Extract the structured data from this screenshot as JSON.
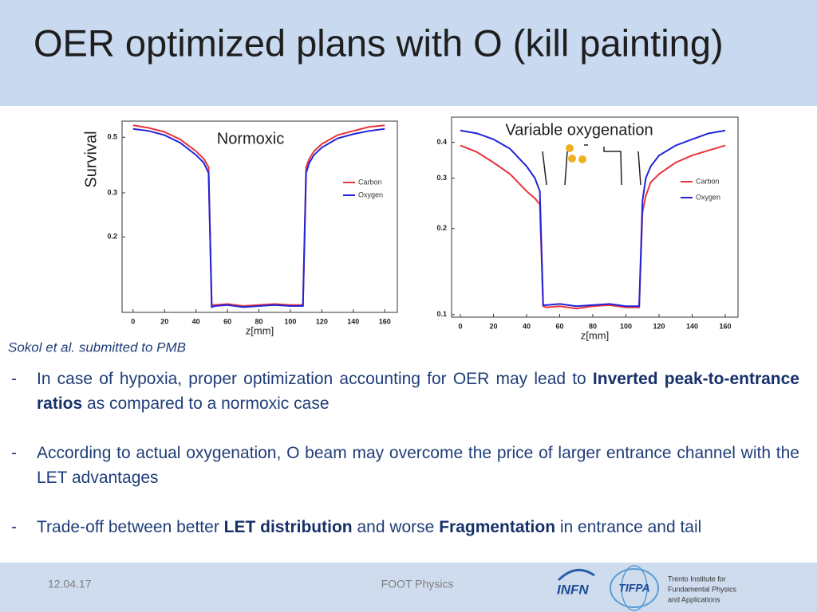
{
  "header": {
    "title": "OER optimized plans with O (kill painting)"
  },
  "chart_data": [
    {
      "type": "line",
      "annotation": "Normoxic",
      "ylabel": "Survival",
      "xlabel": "z[mm]",
      "log_y": true,
      "x": [
        0,
        10,
        20,
        30,
        40,
        45,
        48,
        50,
        52,
        60,
        70,
        80,
        90,
        100,
        108,
        110,
        112,
        115,
        120,
        130,
        140,
        150,
        160
      ],
      "series": [
        {
          "name": "Carbon",
          "color": "#e8333a",
          "values": [
            0.558,
            0.545,
            0.525,
            0.49,
            0.44,
            0.41,
            0.38,
            0.107,
            0.107,
            0.108,
            0.106,
            0.107,
            0.108,
            0.107,
            0.107,
            0.38,
            0.41,
            0.44,
            0.47,
            0.51,
            0.53,
            0.55,
            0.558
          ]
        },
        {
          "name": "Oxygen",
          "color": "#2323d8",
          "values": [
            0.54,
            0.53,
            0.51,
            0.475,
            0.425,
            0.395,
            0.36,
            0.105,
            0.106,
            0.107,
            0.105,
            0.106,
            0.107,
            0.106,
            0.106,
            0.36,
            0.395,
            0.425,
            0.455,
            0.495,
            0.515,
            0.53,
            0.54
          ]
        }
      ],
      "xlim": [
        -7,
        168
      ],
      "xticks": [
        0,
        20,
        40,
        60,
        80,
        100,
        120,
        140,
        160
      ],
      "ylim": [
        0.1,
        0.58
      ],
      "yticks": [
        0.2,
        0.3,
        0.5
      ]
    },
    {
      "type": "line",
      "annotation": "Variable oxygenation",
      "xlabel": "z[mm]",
      "log_y": true,
      "x": [
        0,
        10,
        20,
        30,
        40,
        45,
        48,
        50,
        52,
        60,
        70,
        80,
        90,
        100,
        108,
        110,
        112,
        115,
        120,
        130,
        140,
        150,
        160
      ],
      "series": [
        {
          "name": "Carbon",
          "color": "#e8333a",
          "values": [
            0.39,
            0.37,
            0.34,
            0.31,
            0.27,
            0.255,
            0.243,
            0.107,
            0.106,
            0.107,
            0.105,
            0.107,
            0.108,
            0.106,
            0.106,
            0.228,
            0.26,
            0.29,
            0.31,
            0.34,
            0.36,
            0.375,
            0.39
          ]
        },
        {
          "name": "Oxygen",
          "color": "#2323d8",
          "values": [
            0.44,
            0.43,
            0.41,
            0.38,
            0.33,
            0.3,
            0.27,
            0.108,
            0.108,
            0.109,
            0.107,
            0.108,
            0.109,
            0.107,
            0.107,
            0.25,
            0.3,
            0.33,
            0.36,
            0.39,
            0.41,
            0.43,
            0.44
          ]
        }
      ],
      "xlim": [
        -5.3,
        167.7
      ],
      "xticks": [
        0,
        20,
        40,
        60,
        80,
        100,
        120,
        140,
        160
      ],
      "ylim": [
        0.098,
        0.49
      ],
      "yticks": [
        0.1,
        0.2,
        0.3,
        0.4
      ]
    }
  ],
  "citation": "Sokol et al. submitted to PMB",
  "bullets": [
    {
      "runs": [
        {
          "text": "In case of hypoxia,  proper optimization accounting for OER may lead to ",
          "bold": false
        },
        {
          "text": "Inverted peak-to-entrance  ratios",
          "bold": true
        },
        {
          "text": " as compared to a normoxic case",
          "bold": false
        }
      ]
    },
    {
      "runs": [
        {
          "text": "According to actual oxygenation, O beam may overcome the price of larger entrance channel with the LET advantages",
          "bold": false
        }
      ]
    },
    {
      "runs": [
        {
          "text": "Trade-off between better ",
          "bold": false
        },
        {
          "text": "LET distribution",
          "bold": true
        },
        {
          "text": " and worse ",
          "bold": false
        },
        {
          "text": "Fragmentation",
          "bold": true
        },
        {
          "text": " in entrance and tail",
          "bold": false
        }
      ]
    }
  ],
  "footer": {
    "date": "12.04.17",
    "center": "FOOT Physics",
    "logo_infn": "INFN",
    "logo_tifpa": "TIFPA",
    "institute": [
      "Trento Institute for",
      "Fundamental Physics",
      "and Applications"
    ]
  }
}
